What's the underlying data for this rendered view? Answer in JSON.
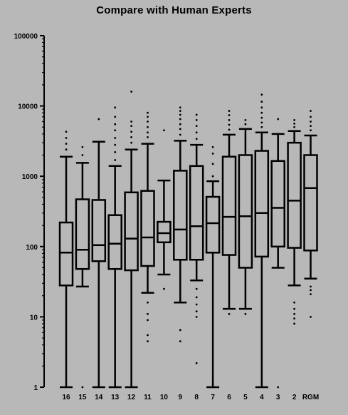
{
  "chart_data": {
    "type": "boxplot",
    "title": "Compare with Human Experts",
    "xlabel": "",
    "ylabel": "",
    "yscale": "log",
    "ylim": [
      1,
      100000
    ],
    "y_tick_labels": [
      "1",
      "10",
      "100",
      "1000",
      "10000",
      "100000"
    ],
    "y_tick_values": [
      1,
      10,
      100,
      1000,
      10000,
      100000
    ],
    "categories": [
      "16",
      "15",
      "14",
      "13",
      "12",
      "11",
      "10",
      "9",
      "8",
      "7",
      "6",
      "5",
      "4",
      "3",
      "2",
      "RGM"
    ],
    "boxes": [
      {
        "label": "16",
        "whisker_low": 1,
        "q1": 28,
        "median": 82,
        "q3": 220,
        "whisker_high": 1900,
        "outliers": [
          2400,
          2900,
          3500,
          4300
        ]
      },
      {
        "label": "15",
        "whisker_low": 27,
        "q1": 48,
        "median": 90,
        "q3": 470,
        "whisker_high": 1550,
        "outliers": [
          1,
          2000,
          2600
        ]
      },
      {
        "label": "14",
        "whisker_low": 1,
        "q1": 62,
        "median": 105,
        "q3": 460,
        "whisker_high": 3100,
        "outliers": [
          6500
        ]
      },
      {
        "label": "13",
        "whisker_low": 1,
        "q1": 48,
        "median": 110,
        "q3": 280,
        "whisker_high": 1400,
        "outliers": [
          1700,
          2200,
          2800,
          3500,
          4500,
          5500,
          7000,
          9500
        ]
      },
      {
        "label": "12",
        "whisker_low": 1,
        "q1": 46,
        "median": 130,
        "q3": 590,
        "whisker_high": 2400,
        "outliers": [
          3000,
          3600,
          4300,
          5200,
          6000,
          16000
        ]
      },
      {
        "label": "11",
        "whisker_low": 22,
        "q1": 53,
        "median": 135,
        "q3": 620,
        "whisker_high": 2900,
        "outliers": [
          16,
          11,
          9,
          5.5,
          4.5,
          3600,
          4200,
          5000,
          6000,
          7000,
          8000
        ]
      },
      {
        "label": "10",
        "whisker_low": 40,
        "q1": 115,
        "median": 155,
        "q3": 225,
        "whisker_high": 870,
        "outliers": [
          25,
          4500
        ]
      },
      {
        "label": "9",
        "whisker_low": 16,
        "q1": 65,
        "median": 175,
        "q3": 1200,
        "whisker_high": 3200,
        "outliers": [
          6.5,
          4.5,
          3900,
          4700,
          5500,
          6500,
          7500,
          8500,
          9500
        ]
      },
      {
        "label": "8",
        "whisker_low": 33,
        "q1": 65,
        "median": 195,
        "q3": 1400,
        "whisker_high": 2800,
        "outliers": [
          25,
          19,
          15,
          12,
          10,
          2.2,
          3400,
          4200,
          5200,
          6300,
          7500
        ]
      },
      {
        "label": "7",
        "whisker_low": 1,
        "q1": 82,
        "median": 215,
        "q3": 510,
        "whisker_high": 850,
        "outliers": [
          1.1,
          1000,
          1500,
          2100,
          2600
        ]
      },
      {
        "label": "6",
        "whisker_low": 13,
        "q1": 76,
        "median": 265,
        "q3": 1900,
        "whisker_high": 3900,
        "outliers": [
          11,
          4600,
          5400,
          6300,
          7400,
          8500
        ]
      },
      {
        "label": "5",
        "whisker_low": 13,
        "q1": 50,
        "median": 270,
        "q3": 2000,
        "whisker_high": 4700,
        "outliers": [
          11,
          5500,
          6300
        ]
      },
      {
        "label": "4",
        "whisker_low": 1,
        "q1": 72,
        "median": 300,
        "q3": 2300,
        "whisker_high": 4200,
        "outliers": [
          5000,
          5800,
          6800,
          8000,
          9500,
          11500,
          14500
        ]
      },
      {
        "label": "3",
        "whisker_low": 50,
        "q1": 100,
        "median": 355,
        "q3": 1650,
        "whisker_high": 4000,
        "outliers": [
          1,
          6500
        ]
      },
      {
        "label": "2",
        "whisker_low": 28,
        "q1": 96,
        "median": 450,
        "q3": 3000,
        "whisker_high": 4400,
        "outliers": [
          16,
          13,
          11,
          9.5,
          8,
          5000,
          5600,
          6300
        ]
      },
      {
        "label": "RGM",
        "whisker_low": 35,
        "q1": 88,
        "median": 680,
        "q3": 2000,
        "whisker_high": 3800,
        "outliers": [
          27,
          24,
          21,
          10,
          4500,
          5200,
          6000,
          7000,
          8500
        ]
      }
    ],
    "grid": false,
    "legend": "none"
  }
}
